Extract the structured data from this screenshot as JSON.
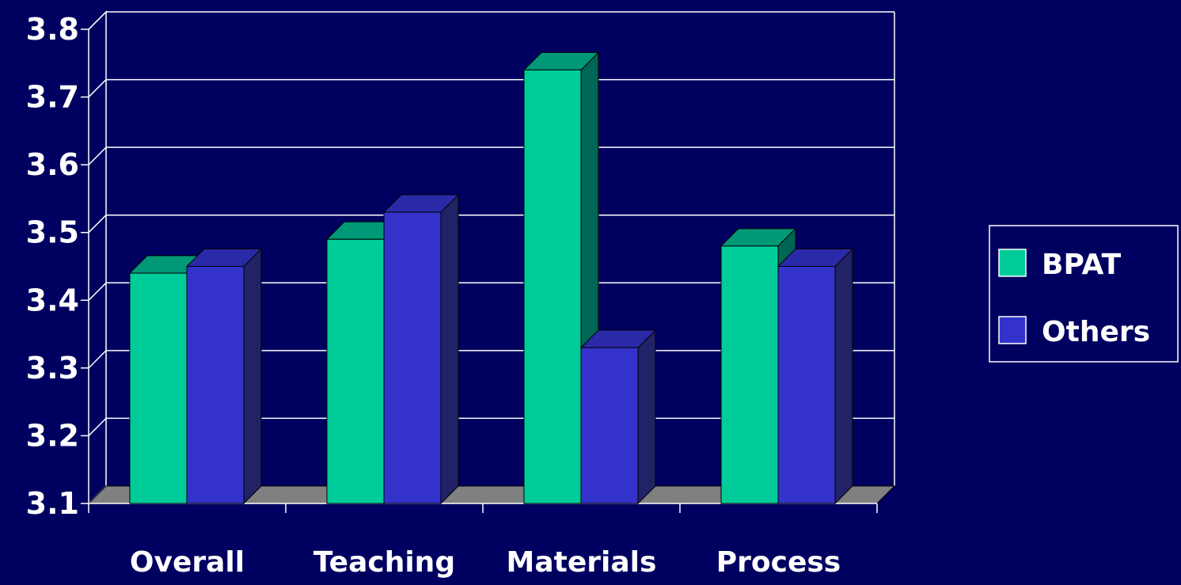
{
  "colors": {
    "background": "#000060",
    "grid": "#ffffff",
    "floor": "#808080",
    "BPAT": {
      "front": "#00cc99",
      "top": "#009977",
      "side": "#006655"
    },
    "Others": {
      "front": "#3333cc",
      "top": "#2a2aa8",
      "side": "#222266"
    }
  },
  "chart_data": {
    "type": "bar",
    "style": "3d-clustered-column",
    "categories": [
      "Overall",
      "Teaching",
      "Materials",
      "Process"
    ],
    "series": [
      {
        "name": "BPAT",
        "values": [
          3.44,
          3.49,
          3.74,
          3.48
        ]
      },
      {
        "name": "Others",
        "values": [
          3.45,
          3.53,
          3.33,
          3.45
        ]
      }
    ],
    "ylim": [
      3.1,
      3.8
    ],
    "yticks": [
      "3.1",
      "3.2",
      "3.3",
      "3.4",
      "3.5",
      "3.6",
      "3.7",
      "3.8"
    ],
    "grid": true,
    "legend_position": "right",
    "title": "",
    "xlabel": "",
    "ylabel": ""
  }
}
